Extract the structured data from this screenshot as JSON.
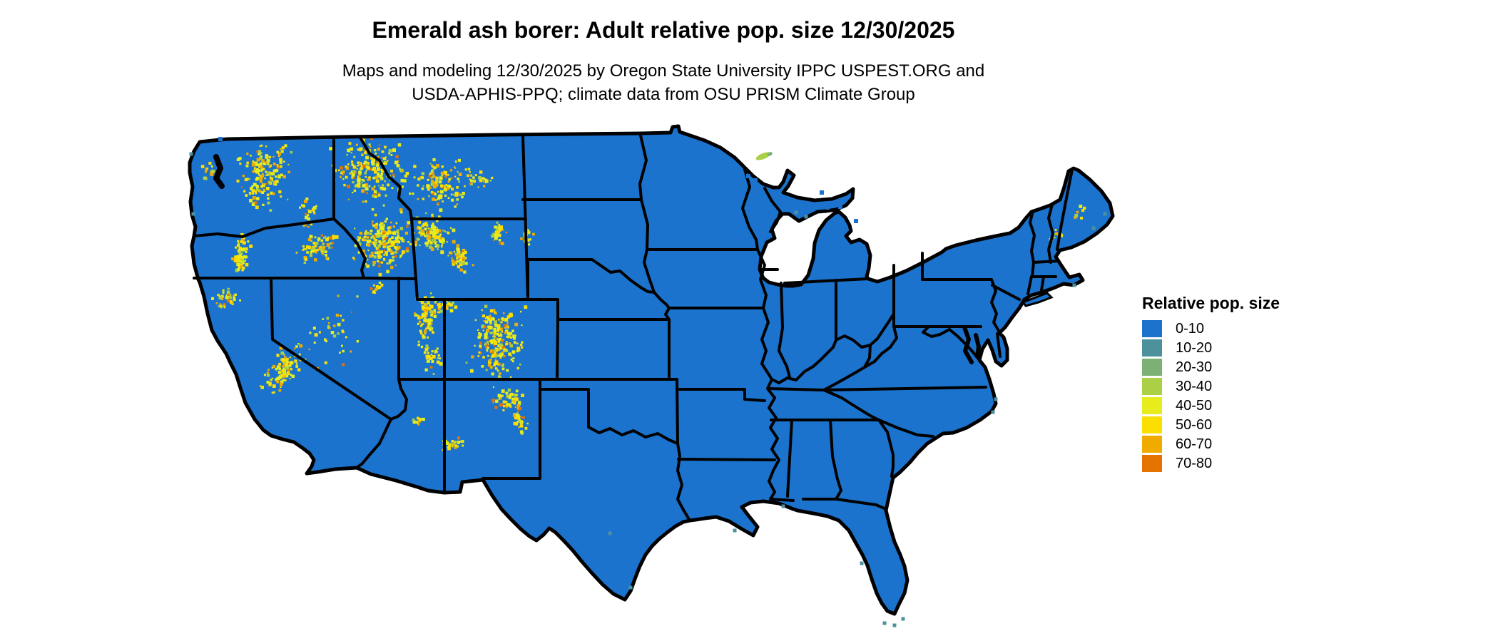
{
  "title": "Emerald ash borer: Adult relative pop. size 12/30/2025",
  "subtitle": {
    "line1": "Maps and modeling 12/30/2025 by Oregon State University IPPC USPEST.ORG and",
    "line2": "USDA-APHIS-PPQ; climate data from OSU PRISM Climate Group"
  },
  "legend": {
    "title": "Relative pop. size",
    "entries": [
      {
        "label": "0-10",
        "color": "#1b73cd"
      },
      {
        "label": "10-20",
        "color": "#4d919d"
      },
      {
        "label": "20-30",
        "color": "#7bb173"
      },
      {
        "label": "30-40",
        "color": "#abcf45"
      },
      {
        "label": "40-50",
        "color": "#e7ed1d"
      },
      {
        "label": "50-60",
        "color": "#fadf00"
      },
      {
        "label": "60-70",
        "color": "#f0ab00"
      },
      {
        "label": "70-80",
        "color": "#e57300"
      }
    ]
  },
  "map": {
    "land_fill": "#1b73cd",
    "border_color": "#000000",
    "background": "#ffffff"
  }
}
